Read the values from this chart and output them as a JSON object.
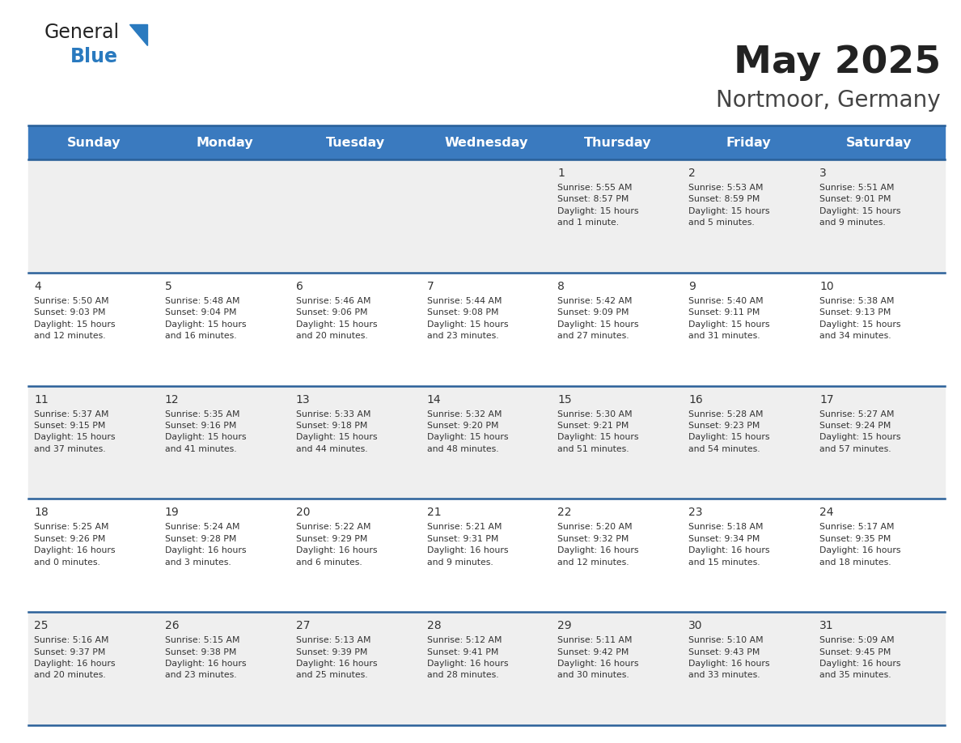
{
  "title": "May 2025",
  "subtitle": "Nortmoor, Germany",
  "header_bg": "#3a7abf",
  "header_text_color": "#ffffff",
  "cell_bg_odd": "#efefef",
  "cell_bg_even": "#ffffff",
  "border_color": "#2a6099",
  "text_color": "#333333",
  "days_of_week": [
    "Sunday",
    "Monday",
    "Tuesday",
    "Wednesday",
    "Thursday",
    "Friday",
    "Saturday"
  ],
  "weeks": [
    [
      {
        "day": "",
        "info": ""
      },
      {
        "day": "",
        "info": ""
      },
      {
        "day": "",
        "info": ""
      },
      {
        "day": "",
        "info": ""
      },
      {
        "day": "1",
        "info": "Sunrise: 5:55 AM\nSunset: 8:57 PM\nDaylight: 15 hours\nand 1 minute."
      },
      {
        "day": "2",
        "info": "Sunrise: 5:53 AM\nSunset: 8:59 PM\nDaylight: 15 hours\nand 5 minutes."
      },
      {
        "day": "3",
        "info": "Sunrise: 5:51 AM\nSunset: 9:01 PM\nDaylight: 15 hours\nand 9 minutes."
      }
    ],
    [
      {
        "day": "4",
        "info": "Sunrise: 5:50 AM\nSunset: 9:03 PM\nDaylight: 15 hours\nand 12 minutes."
      },
      {
        "day": "5",
        "info": "Sunrise: 5:48 AM\nSunset: 9:04 PM\nDaylight: 15 hours\nand 16 minutes."
      },
      {
        "day": "6",
        "info": "Sunrise: 5:46 AM\nSunset: 9:06 PM\nDaylight: 15 hours\nand 20 minutes."
      },
      {
        "day": "7",
        "info": "Sunrise: 5:44 AM\nSunset: 9:08 PM\nDaylight: 15 hours\nand 23 minutes."
      },
      {
        "day": "8",
        "info": "Sunrise: 5:42 AM\nSunset: 9:09 PM\nDaylight: 15 hours\nand 27 minutes."
      },
      {
        "day": "9",
        "info": "Sunrise: 5:40 AM\nSunset: 9:11 PM\nDaylight: 15 hours\nand 31 minutes."
      },
      {
        "day": "10",
        "info": "Sunrise: 5:38 AM\nSunset: 9:13 PM\nDaylight: 15 hours\nand 34 minutes."
      }
    ],
    [
      {
        "day": "11",
        "info": "Sunrise: 5:37 AM\nSunset: 9:15 PM\nDaylight: 15 hours\nand 37 minutes."
      },
      {
        "day": "12",
        "info": "Sunrise: 5:35 AM\nSunset: 9:16 PM\nDaylight: 15 hours\nand 41 minutes."
      },
      {
        "day": "13",
        "info": "Sunrise: 5:33 AM\nSunset: 9:18 PM\nDaylight: 15 hours\nand 44 minutes."
      },
      {
        "day": "14",
        "info": "Sunrise: 5:32 AM\nSunset: 9:20 PM\nDaylight: 15 hours\nand 48 minutes."
      },
      {
        "day": "15",
        "info": "Sunrise: 5:30 AM\nSunset: 9:21 PM\nDaylight: 15 hours\nand 51 minutes."
      },
      {
        "day": "16",
        "info": "Sunrise: 5:28 AM\nSunset: 9:23 PM\nDaylight: 15 hours\nand 54 minutes."
      },
      {
        "day": "17",
        "info": "Sunrise: 5:27 AM\nSunset: 9:24 PM\nDaylight: 15 hours\nand 57 minutes."
      }
    ],
    [
      {
        "day": "18",
        "info": "Sunrise: 5:25 AM\nSunset: 9:26 PM\nDaylight: 16 hours\nand 0 minutes."
      },
      {
        "day": "19",
        "info": "Sunrise: 5:24 AM\nSunset: 9:28 PM\nDaylight: 16 hours\nand 3 minutes."
      },
      {
        "day": "20",
        "info": "Sunrise: 5:22 AM\nSunset: 9:29 PM\nDaylight: 16 hours\nand 6 minutes."
      },
      {
        "day": "21",
        "info": "Sunrise: 5:21 AM\nSunset: 9:31 PM\nDaylight: 16 hours\nand 9 minutes."
      },
      {
        "day": "22",
        "info": "Sunrise: 5:20 AM\nSunset: 9:32 PM\nDaylight: 16 hours\nand 12 minutes."
      },
      {
        "day": "23",
        "info": "Sunrise: 5:18 AM\nSunset: 9:34 PM\nDaylight: 16 hours\nand 15 minutes."
      },
      {
        "day": "24",
        "info": "Sunrise: 5:17 AM\nSunset: 9:35 PM\nDaylight: 16 hours\nand 18 minutes."
      }
    ],
    [
      {
        "day": "25",
        "info": "Sunrise: 5:16 AM\nSunset: 9:37 PM\nDaylight: 16 hours\nand 20 minutes."
      },
      {
        "day": "26",
        "info": "Sunrise: 5:15 AM\nSunset: 9:38 PM\nDaylight: 16 hours\nand 23 minutes."
      },
      {
        "day": "27",
        "info": "Sunrise: 5:13 AM\nSunset: 9:39 PM\nDaylight: 16 hours\nand 25 minutes."
      },
      {
        "day": "28",
        "info": "Sunrise: 5:12 AM\nSunset: 9:41 PM\nDaylight: 16 hours\nand 28 minutes."
      },
      {
        "day": "29",
        "info": "Sunrise: 5:11 AM\nSunset: 9:42 PM\nDaylight: 16 hours\nand 30 minutes."
      },
      {
        "day": "30",
        "info": "Sunrise: 5:10 AM\nSunset: 9:43 PM\nDaylight: 16 hours\nand 33 minutes."
      },
      {
        "day": "31",
        "info": "Sunrise: 5:09 AM\nSunset: 9:45 PM\nDaylight: 16 hours\nand 35 minutes."
      }
    ]
  ],
  "logo_general_color": "#222222",
  "logo_blue_color": "#2a7abf",
  "logo_triangle_color": "#2a7abf",
  "title_color": "#222222",
  "subtitle_color": "#444444"
}
